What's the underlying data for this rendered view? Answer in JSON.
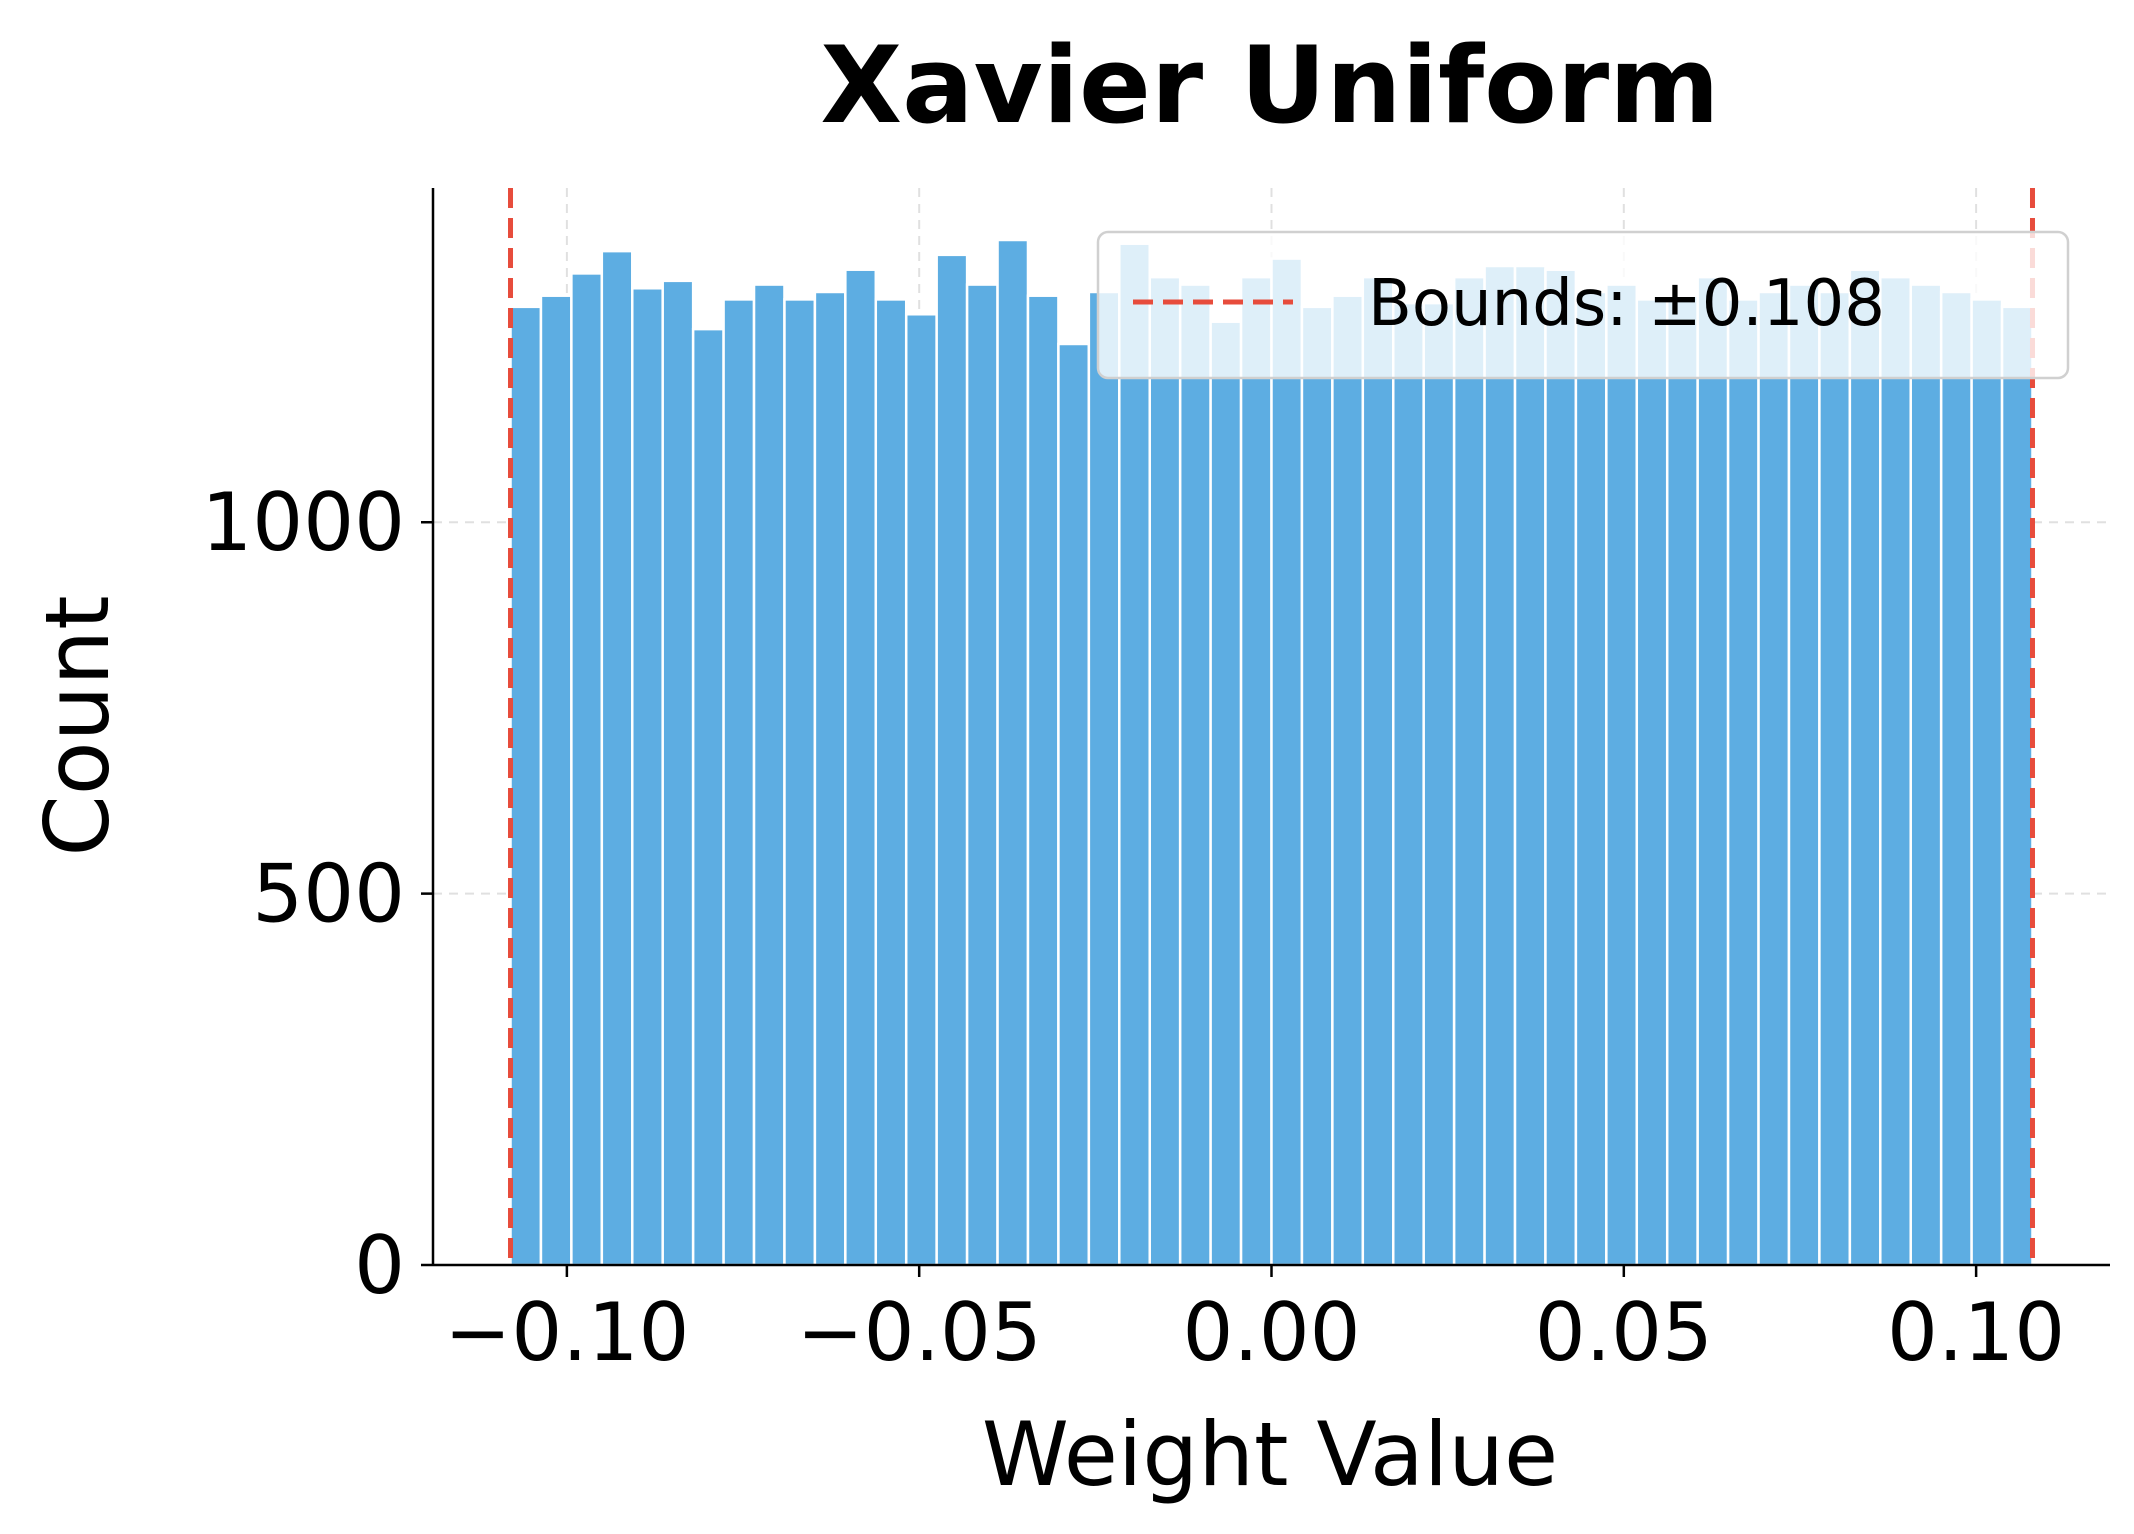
{
  "chart_data": {
    "type": "bar",
    "title": "Xavier Uniform",
    "xlabel": "Weight Value",
    "ylabel": "Count",
    "xlim": [
      -0.119,
      0.119
    ],
    "ylim": [
      0,
      1450
    ],
    "x_ticks": [
      -0.1,
      -0.05,
      0.0,
      0.05,
      0.1
    ],
    "x_tick_labels": [
      "−0.10",
      "−0.05",
      "0.00",
      "0.05",
      "0.10"
    ],
    "y_ticks": [
      0,
      500,
      1000
    ],
    "y_tick_labels": [
      "0",
      "500",
      "1000"
    ],
    "grid": true,
    "bins": {
      "start": -0.108,
      "end": 0.108,
      "count": 50,
      "values": [
        1290,
        1305,
        1335,
        1365,
        1315,
        1325,
        1260,
        1300,
        1320,
        1300,
        1310,
        1340,
        1300,
        1280,
        1360,
        1320,
        1380,
        1305,
        1240,
        1310,
        1375,
        1330,
        1320,
        1270,
        1330,
        1355,
        1290,
        1305,
        1330,
        1295,
        1295,
        1330,
        1345,
        1345,
        1340,
        1310,
        1320,
        1300,
        1305,
        1330,
        1300,
        1310,
        1320,
        1310,
        1340,
        1330,
        1320,
        1310,
        1300,
        1290
      ]
    },
    "reference_lines": [
      {
        "x": -0.108,
        "style": "dashed",
        "color": "#e74c3c"
      },
      {
        "x": 0.108,
        "style": "dashed",
        "color": "#e74c3c"
      }
    ],
    "legend": {
      "position": "top-right",
      "entries": [
        {
          "label": "Bounds: ±0.108",
          "color": "#e74c3c",
          "style": "dashed"
        }
      ]
    },
    "colors": {
      "bar": "#5dade2",
      "bar_edge": "#ffffff",
      "bound": "#e74c3c"
    }
  }
}
